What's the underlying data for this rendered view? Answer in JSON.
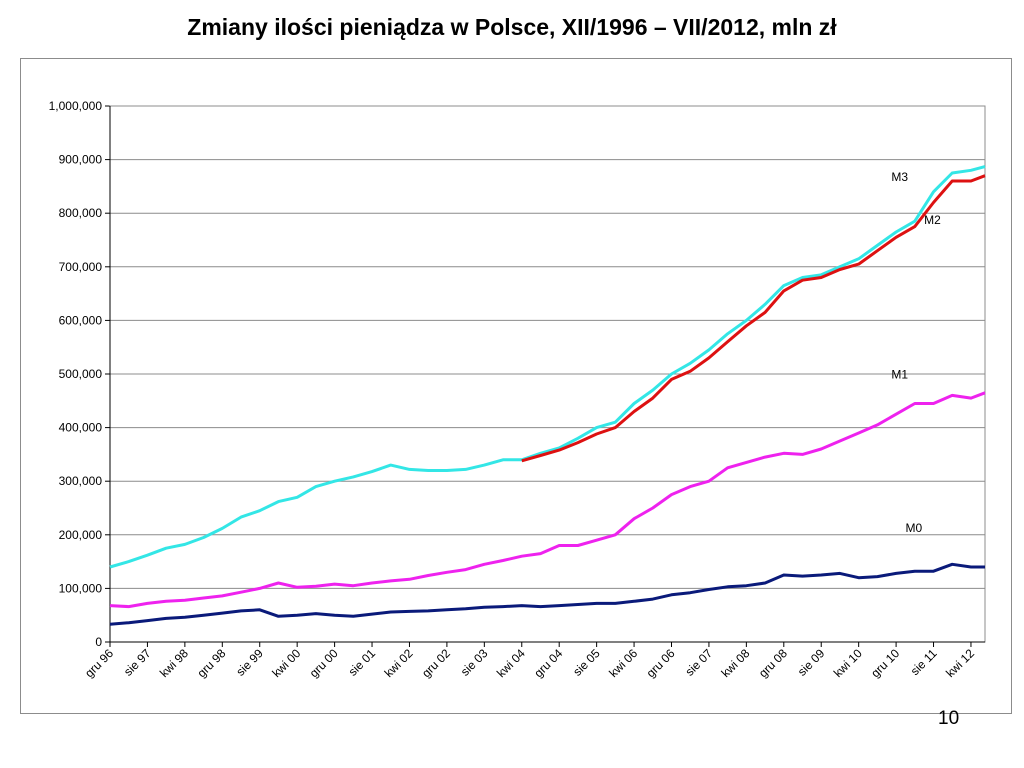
{
  "slide": {
    "title": "Zmiany ilości pieniądza w Polsce, XII/1996 – VII/2012, mln zł",
    "page_number": "10"
  },
  "chart_data": {
    "type": "line",
    "title": "",
    "xlabel": "",
    "ylabel": "",
    "ylim": [
      0,
      1000000
    ],
    "yticks": [
      0,
      100000,
      200000,
      300000,
      400000,
      500000,
      600000,
      700000,
      800000,
      900000,
      1000000
    ],
    "ytick_labels": [
      "0",
      "100,000",
      "200,000",
      "300,000",
      "400,000",
      "500,000",
      "600,000",
      "700,000",
      "800,000",
      "900,000",
      "1,000,000"
    ],
    "x_start": "1996-12",
    "x_end": "2012-07",
    "x_tick_labels": [
      "gru 96",
      "sie 97",
      "kwi 98",
      "gru 98",
      "sie 99",
      "kwi 00",
      "gru 00",
      "sie 01",
      "kwi 02",
      "gru 02",
      "sie 03",
      "kwi 04",
      "gru 04",
      "sie 05",
      "kwi 06",
      "gru 06",
      "sie 07",
      "kwi 08",
      "gru 08",
      "sie 09",
      "kwi 10",
      "gru 10",
      "sie 11",
      "kwi 12"
    ],
    "grid": true,
    "legend": "none",
    "series": [
      {
        "name": "M3",
        "color": "#33e6e6",
        "x": [
          "1996-12",
          "1997-04",
          "1997-08",
          "1997-12",
          "1998-04",
          "1998-08",
          "1998-12",
          "1999-04",
          "1999-08",
          "1999-12",
          "2000-04",
          "2000-08",
          "2000-12",
          "2001-04",
          "2001-08",
          "2001-12",
          "2002-04",
          "2002-08",
          "2002-12",
          "2003-04",
          "2003-08",
          "2003-12",
          "2004-04",
          "2004-08",
          "2004-12",
          "2005-04",
          "2005-08",
          "2005-12",
          "2006-04",
          "2006-08",
          "2006-12",
          "2007-04",
          "2007-08",
          "2007-12",
          "2008-04",
          "2008-08",
          "2008-12",
          "2009-04",
          "2009-08",
          "2009-12",
          "2010-04",
          "2010-08",
          "2010-12",
          "2011-04",
          "2011-08",
          "2011-12",
          "2012-04",
          "2012-07"
        ],
        "values": [
          140000,
          150000,
          162000,
          175000,
          182000,
          195000,
          212000,
          233000,
          245000,
          262000,
          270000,
          290000,
          300000,
          308000,
          318000,
          330000,
          322000,
          320000,
          320000,
          322000,
          330000,
          340000,
          340000,
          352000,
          362000,
          380000,
          400000,
          410000,
          445000,
          470000,
          500000,
          520000,
          545000,
          575000,
          600000,
          630000,
          665000,
          680000,
          685000,
          700000,
          715000,
          740000,
          765000,
          785000,
          840000,
          875000,
          880000,
          887000
        ]
      },
      {
        "name": "M2",
        "color": "#dd1111",
        "x": [
          "2004-04",
          "2004-08",
          "2004-12",
          "2005-04",
          "2005-08",
          "2005-12",
          "2006-04",
          "2006-08",
          "2006-12",
          "2007-04",
          "2007-08",
          "2007-12",
          "2008-04",
          "2008-08",
          "2008-12",
          "2009-04",
          "2009-08",
          "2009-12",
          "2010-04",
          "2010-08",
          "2010-12",
          "2011-04",
          "2011-08",
          "2011-12",
          "2012-04",
          "2012-07"
        ],
        "values": [
          338000,
          348000,
          358000,
          372000,
          388000,
          400000,
          430000,
          455000,
          490000,
          505000,
          530000,
          560000,
          590000,
          615000,
          655000,
          675000,
          680000,
          695000,
          705000,
          730000,
          755000,
          775000,
          820000,
          860000,
          860000,
          870000
        ]
      },
      {
        "name": "M1",
        "color": "#ee22ee",
        "x": [
          "1996-12",
          "1997-04",
          "1997-08",
          "1997-12",
          "1998-04",
          "1998-08",
          "1998-12",
          "1999-04",
          "1999-08",
          "1999-12",
          "2000-04",
          "2000-08",
          "2000-12",
          "2001-04",
          "2001-08",
          "2001-12",
          "2002-04",
          "2002-08",
          "2002-12",
          "2003-04",
          "2003-08",
          "2003-12",
          "2004-04",
          "2004-08",
          "2004-12",
          "2005-04",
          "2005-08",
          "2005-12",
          "2006-04",
          "2006-08",
          "2006-12",
          "2007-04",
          "2007-08",
          "2007-12",
          "2008-04",
          "2008-08",
          "2008-12",
          "2009-04",
          "2009-08",
          "2009-12",
          "2010-04",
          "2010-08",
          "2010-12",
          "2011-04",
          "2011-08",
          "2011-12",
          "2012-04",
          "2012-07"
        ],
        "values": [
          68000,
          66000,
          72000,
          76000,
          78000,
          82000,
          86000,
          93000,
          100000,
          110000,
          102000,
          104000,
          108000,
          105000,
          110000,
          114000,
          117000,
          124000,
          130000,
          135000,
          145000,
          152000,
          160000,
          165000,
          180000,
          180000,
          190000,
          200000,
          230000,
          250000,
          275000,
          290000,
          300000,
          325000,
          335000,
          345000,
          352000,
          350000,
          360000,
          375000,
          390000,
          405000,
          425000,
          445000,
          445000,
          460000,
          455000,
          465000
        ]
      },
      {
        "name": "M0",
        "color": "#0a1a7a",
        "x": [
          "1996-12",
          "1997-04",
          "1997-08",
          "1997-12",
          "1998-04",
          "1998-08",
          "1998-12",
          "1999-04",
          "1999-08",
          "1999-12",
          "2000-04",
          "2000-08",
          "2000-12",
          "2001-04",
          "2001-08",
          "2001-12",
          "2002-04",
          "2002-08",
          "2002-12",
          "2003-04",
          "2003-08",
          "2003-12",
          "2004-04",
          "2004-08",
          "2004-12",
          "2005-04",
          "2005-08",
          "2005-12",
          "2006-04",
          "2006-08",
          "2006-12",
          "2007-04",
          "2007-08",
          "2007-12",
          "2008-04",
          "2008-08",
          "2008-12",
          "2009-04",
          "2009-08",
          "2009-12",
          "2010-04",
          "2010-08",
          "2010-12",
          "2011-04",
          "2011-08",
          "2011-12",
          "2012-04",
          "2012-07"
        ],
        "values": [
          33000,
          36000,
          40000,
          44000,
          46000,
          50000,
          54000,
          58000,
          60000,
          48000,
          50000,
          53000,
          50000,
          48000,
          52000,
          56000,
          57000,
          58000,
          60000,
          62000,
          65000,
          66000,
          68000,
          66000,
          68000,
          70000,
          72000,
          72000,
          76000,
          80000,
          88000,
          92000,
          98000,
          103000,
          105000,
          110000,
          125000,
          123000,
          125000,
          128000,
          120000,
          122000,
          128000,
          132000,
          132000,
          145000,
          140000,
          140000
        ]
      }
    ]
  }
}
